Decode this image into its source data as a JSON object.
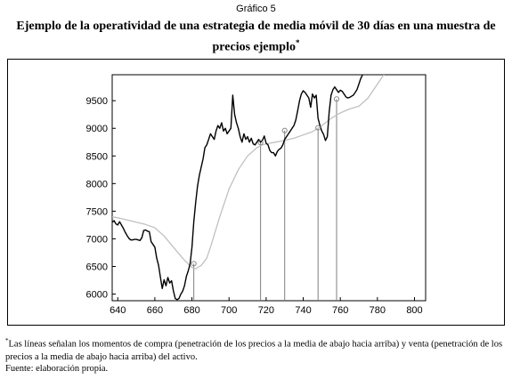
{
  "header": {
    "caption": "Gráfico 5",
    "title": "Ejemplo de la operatividad de una estrategia de media móvil de 30 días en una muestra de precios ejemplo",
    "title_mark": "*"
  },
  "footer": {
    "note_mark": "*",
    "note": "Las líneas señalan los momentos de compra (penetración de los precios a la media de abajo hacia arriba) y venta (penetración de los precios a la media de abajo hacia arriba) del activo.",
    "source": "Fuente: elaboración propia."
  },
  "colors": {
    "price": "#000000",
    "moving_average": "#c0c0c0",
    "signal_line": "#7f7f7f"
  },
  "chart_data": {
    "type": "line",
    "title": "",
    "xlabel": "",
    "ylabel": "",
    "xlim": [
      637,
      806
    ],
    "ylim": [
      5880,
      9970
    ],
    "xticks": [
      640,
      660,
      680,
      700,
      720,
      740,
      760,
      780,
      800
    ],
    "yticks": [
      6000,
      6500,
      7000,
      7500,
      8000,
      8500,
      9000,
      9500
    ],
    "grid": false,
    "series": [
      {
        "role": "price",
        "x": [
          637,
          638,
          639,
          640,
          641,
          642,
          643,
          644,
          645,
          646,
          647,
          648,
          649,
          650,
          651,
          652,
          653,
          654,
          655,
          656,
          657,
          658,
          659,
          660,
          661,
          662,
          663,
          664,
          665,
          666,
          667,
          668,
          669,
          670,
          671,
          672,
          673,
          674,
          675,
          676,
          677,
          678,
          679,
          680,
          681,
          682,
          683,
          684,
          685,
          686,
          687,
          688,
          689,
          690,
          691,
          692,
          693,
          694,
          695,
          696,
          697,
          698,
          699,
          700,
          701,
          702,
          703,
          704,
          705,
          706,
          707,
          708,
          709,
          710,
          711,
          712,
          713,
          714,
          715,
          716,
          717,
          718,
          719,
          720,
          721,
          722,
          723,
          724,
          725,
          726,
          727,
          728,
          729,
          730,
          731,
          732,
          733,
          734,
          735,
          736,
          737,
          738,
          739,
          740,
          741,
          742,
          743,
          744,
          745,
          746,
          747,
          748,
          749,
          750,
          751,
          752,
          753,
          754,
          755,
          756,
          757,
          758,
          759,
          760,
          761,
          762,
          763,
          764,
          765,
          766,
          767,
          768,
          769,
          770,
          771,
          772
        ],
        "y": [
          7300,
          7330,
          7270,
          7250,
          7310,
          7250,
          7190,
          7120,
          7060,
          7010,
          6980,
          6980,
          6990,
          6990,
          6980,
          6970,
          7020,
          7150,
          7160,
          7140,
          7130,
          6950,
          6900,
          6850,
          6650,
          6520,
          6300,
          6100,
          6260,
          6150,
          6300,
          6200,
          6240,
          6060,
          5920,
          5900,
          5920,
          6000,
          6050,
          6150,
          6320,
          6420,
          6550,
          6850,
          7300,
          7650,
          7950,
          8150,
          8300,
          8450,
          8650,
          8700,
          8800,
          8900,
          8850,
          8800,
          8950,
          9050,
          9000,
          9100,
          8950,
          9000,
          8900,
          8950,
          9000,
          9600,
          9250,
          9100,
          9000,
          8850,
          8750,
          8900,
          8800,
          8850,
          8750,
          8820,
          8720,
          8700,
          8750,
          8800,
          8750,
          8780,
          8860,
          8730,
          8700,
          8600,
          8560,
          8560,
          8500,
          8580,
          8620,
          8640,
          8700,
          8800,
          8850,
          8900,
          8950,
          9000,
          9050,
          9150,
          9320,
          9500,
          9620,
          9680,
          9650,
          9600,
          9550,
          9380,
          9620,
          9550,
          9600,
          9180,
          9050,
          8950,
          8890,
          8780,
          8850,
          9300,
          9600,
          9700,
          9750,
          9700,
          9650,
          9690,
          9670,
          9620,
          9570,
          9550,
          9560,
          9580,
          9600,
          9650,
          9700,
          9800,
          9900,
          9970
        ]
      },
      {
        "role": "moving_average",
        "x": [
          637,
          640,
          645,
          650,
          655,
          660,
          665,
          670,
          675,
          677,
          680,
          682,
          685,
          688,
          690,
          695,
          700,
          705,
          710,
          715,
          718,
          720,
          725,
          730,
          735,
          740,
          745,
          748,
          750,
          755,
          760,
          765,
          770,
          775,
          780,
          785,
          790
        ],
        "y": [
          7400,
          7380,
          7340,
          7300,
          7260,
          7200,
          7050,
          6850,
          6650,
          6580,
          6480,
          6460,
          6520,
          6650,
          6850,
          7400,
          7900,
          8250,
          8500,
          8650,
          8700,
          8720,
          8750,
          8780,
          8820,
          8880,
          8940,
          9000,
          9050,
          9180,
          9280,
          9350,
          9400,
          9550,
          9800,
          10050,
          10300
        ]
      }
    ],
    "signals": [
      {
        "x": 681,
        "y": 6550
      },
      {
        "x": 717,
        "y": 8740
      },
      {
        "x": 730,
        "y": 8960
      },
      {
        "x": 748,
        "y": 9010
      },
      {
        "x": 758,
        "y": 9530
      }
    ]
  }
}
